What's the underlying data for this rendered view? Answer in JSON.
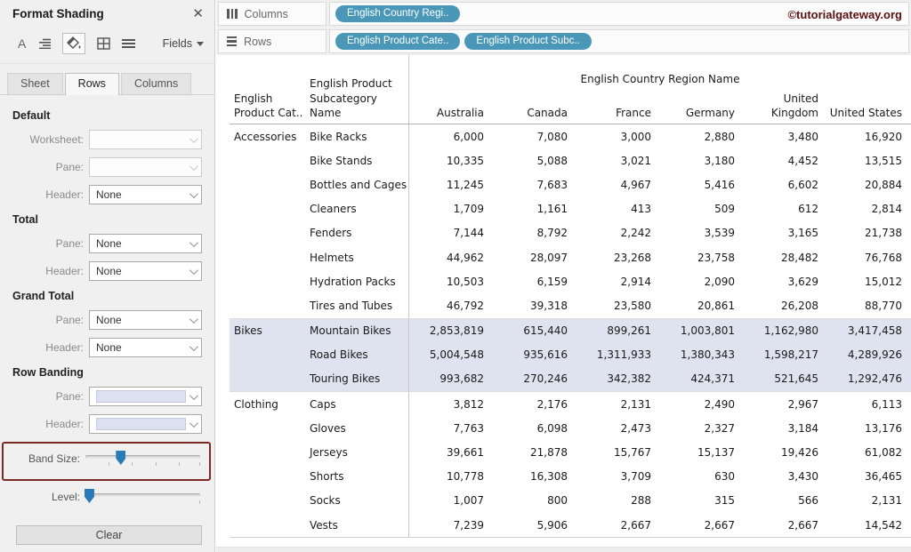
{
  "format_pane": {
    "title": "Format Shading",
    "close_icon": "✕",
    "toolbar": {
      "font_icon": "A",
      "fields_label": "Fields",
      "selected_tool": "shading"
    },
    "tabs": [
      {
        "label": "Sheet",
        "active": false
      },
      {
        "label": "Rows",
        "active": true
      },
      {
        "label": "Columns",
        "active": false
      }
    ],
    "sections": [
      {
        "title": "Default",
        "fields": [
          {
            "label": "Worksheet:",
            "value": "",
            "type": "select",
            "disabled": true
          },
          {
            "label": "Pane:",
            "value": "",
            "type": "select",
            "disabled": true
          },
          {
            "label": "Header:",
            "value": "None",
            "type": "select",
            "disabled": false
          }
        ]
      },
      {
        "title": "Total",
        "fields": [
          {
            "label": "Pane:",
            "value": "None",
            "type": "select",
            "disabled": false
          },
          {
            "label": "Header:",
            "value": "None",
            "type": "select",
            "disabled": false
          }
        ]
      },
      {
        "title": "Grand Total",
        "fields": [
          {
            "label": "Pane:",
            "value": "None",
            "type": "select",
            "disabled": false
          },
          {
            "label": "Header:",
            "value": "None",
            "type": "select",
            "disabled": false
          }
        ]
      },
      {
        "title": "Row Banding",
        "fields": [
          {
            "label": "Pane:",
            "value": "",
            "type": "swatch",
            "disabled": false,
            "swatch_color": "#dce1f1"
          },
          {
            "label": "Header:",
            "value": "",
            "type": "swatch",
            "disabled": false,
            "swatch_color": "#dce1f1"
          }
        ]
      }
    ],
    "band_size": {
      "label": "Band Size:",
      "percent": 30,
      "tick_positions": [
        20,
        40,
        60,
        80,
        98
      ],
      "highlighted": true,
      "highlight_color": "#7c2a21"
    },
    "level": {
      "label": "Level:",
      "percent": 3,
      "tick_positions": [
        98
      ]
    },
    "slider_thumb_color": "#2a7ab8",
    "clear_button": "Clear"
  },
  "shelves": {
    "columns_shelf": {
      "label": "Columns",
      "pills": [
        "English Country Regi.."
      ]
    },
    "rows_shelf": {
      "label": "Rows",
      "pills": [
        "English Product Cate..",
        "English Product Subc.."
      ]
    },
    "pill_color": "#4a97b8"
  },
  "watermark": {
    "text": "©tutorialgateway.org",
    "color": "#5a1010"
  },
  "table": {
    "spanning_header": "English Country Region Name",
    "row_header_columns": [
      "English\nProduct Cat..",
      "English Product\nSubcategory Name"
    ],
    "columns": [
      "Australia",
      "Canada",
      "France",
      "Germany",
      "United\nKingdom",
      "United States"
    ],
    "band_color": "#dfe2ef",
    "groups": [
      {
        "category": "Accessories",
        "shaded": false,
        "rows": [
          {
            "subcategory": "Bike Racks",
            "values": [
              "6,000",
              "7,080",
              "3,000",
              "2,880",
              "3,480",
              "16,920"
            ]
          },
          {
            "subcategory": "Bike Stands",
            "values": [
              "10,335",
              "5,088",
              "3,021",
              "3,180",
              "4,452",
              "13,515"
            ]
          },
          {
            "subcategory": "Bottles and Cages",
            "values": [
              "11,245",
              "7,683",
              "4,967",
              "5,416",
              "6,602",
              "20,884"
            ]
          },
          {
            "subcategory": "Cleaners",
            "values": [
              "1,709",
              "1,161",
              "413",
              "509",
              "612",
              "2,814"
            ]
          },
          {
            "subcategory": "Fenders",
            "values": [
              "7,144",
              "8,792",
              "2,242",
              "3,539",
              "3,165",
              "21,738"
            ]
          },
          {
            "subcategory": "Helmets",
            "values": [
              "44,962",
              "28,097",
              "23,268",
              "23,758",
              "28,482",
              "76,768"
            ]
          },
          {
            "subcategory": "Hydration Packs",
            "values": [
              "10,503",
              "6,159",
              "2,914",
              "2,090",
              "3,629",
              "15,012"
            ]
          },
          {
            "subcategory": "Tires and Tubes",
            "values": [
              "46,792",
              "39,318",
              "23,580",
              "20,861",
              "26,208",
              "88,770"
            ]
          }
        ]
      },
      {
        "category": "Bikes",
        "shaded": true,
        "rows": [
          {
            "subcategory": "Mountain Bikes",
            "values": [
              "2,853,819",
              "615,440",
              "899,261",
              "1,003,801",
              "1,162,980",
              "3,417,458"
            ]
          },
          {
            "subcategory": "Road Bikes",
            "values": [
              "5,004,548",
              "935,616",
              "1,311,933",
              "1,380,343",
              "1,598,217",
              "4,289,926"
            ]
          },
          {
            "subcategory": "Touring Bikes",
            "values": [
              "993,682",
              "270,246",
              "342,382",
              "424,371",
              "521,645",
              "1,292,476"
            ]
          }
        ]
      },
      {
        "category": "Clothing",
        "shaded": false,
        "rows": [
          {
            "subcategory": "Caps",
            "values": [
              "3,812",
              "2,176",
              "2,131",
              "2,490",
              "2,967",
              "6,113"
            ]
          },
          {
            "subcategory": "Gloves",
            "values": [
              "7,763",
              "6,098",
              "2,473",
              "2,327",
              "3,184",
              "13,176"
            ]
          },
          {
            "subcategory": "Jerseys",
            "values": [
              "39,661",
              "21,878",
              "15,767",
              "15,137",
              "19,426",
              "61,082"
            ]
          },
          {
            "subcategory": "Shorts",
            "values": [
              "10,778",
              "16,308",
              "3,709",
              "630",
              "3,430",
              "36,465"
            ]
          },
          {
            "subcategory": "Socks",
            "values": [
              "1,007",
              "800",
              "288",
              "315",
              "566",
              "2,131"
            ]
          },
          {
            "subcategory": "Vests",
            "values": [
              "7,239",
              "5,906",
              "2,667",
              "2,667",
              "2,667",
              "14,542"
            ]
          }
        ]
      }
    ]
  }
}
